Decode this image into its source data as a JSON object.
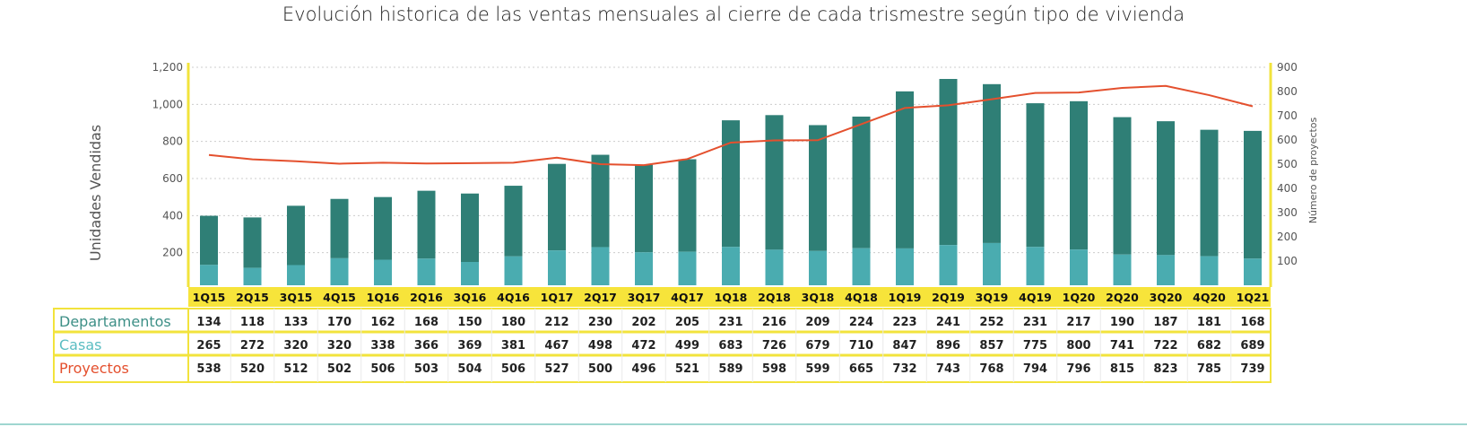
{
  "chart_data": {
    "type": "bar",
    "title": "Evolución historica de las ventas  mensuales  al cierre de cada trismestre  según tipo de vivienda",
    "ylabel": "Unidades Vendidas",
    "y2label": "Número de proyectos",
    "ylim": [
      0,
      1200
    ],
    "y2lim": [
      0,
      900
    ],
    "yticks": [
      "200",
      "400",
      "600",
      "800",
      "1,000",
      "1,200"
    ],
    "yticks_values": [
      200,
      400,
      600,
      800,
      1000,
      1200
    ],
    "y2ticks": [
      "100",
      "200",
      "300",
      "400",
      "500",
      "600",
      "700",
      "800",
      "900"
    ],
    "y2ticks_values": [
      100,
      200,
      300,
      400,
      500,
      600,
      700,
      800,
      900
    ],
    "categories": [
      "1Q15",
      "2Q15",
      "3Q15",
      "4Q15",
      "1Q16",
      "2Q16",
      "3Q16",
      "4Q16",
      "1Q17",
      "2Q17",
      "3Q17",
      "4Q17",
      "1Q18",
      "2Q18",
      "3Q18",
      "4Q18",
      "1Q19",
      "2Q19",
      "3Q19",
      "4Q19",
      "1Q20",
      "2Q20",
      "3Q20",
      "4Q20",
      "1Q21"
    ],
    "series": [
      {
        "name": "Departamentos",
        "type": "stacked-bar",
        "color": "#4aacb0",
        "label_color": "#3d8f86",
        "values": [
          134,
          118,
          133,
          170,
          162,
          168,
          150,
          180,
          212,
          230,
          202,
          205,
          231,
          216,
          209,
          224,
          223,
          241,
          252,
          231,
          217,
          190,
          187,
          181,
          168
        ]
      },
      {
        "name": "Casas",
        "type": "stacked-bar",
        "color": "#2f7f76",
        "label_color": "#5bbdc2",
        "values": [
          265,
          272,
          320,
          320,
          338,
          366,
          369,
          381,
          467,
          498,
          472,
          499,
          683,
          726,
          679,
          710,
          847,
          896,
          857,
          775,
          800,
          741,
          722,
          682,
          689
        ]
      },
      {
        "name": "Proyectos",
        "type": "line",
        "axis": "right",
        "color": "#e4502e",
        "label_color": "#e4502e",
        "values": [
          538,
          520,
          512,
          502,
          506,
          503,
          504,
          506,
          527,
          500,
          496,
          521,
          589,
          598,
          599,
          665,
          732,
          743,
          768,
          794,
          796,
          815,
          823,
          785,
          739
        ]
      }
    ],
    "grid": true
  }
}
